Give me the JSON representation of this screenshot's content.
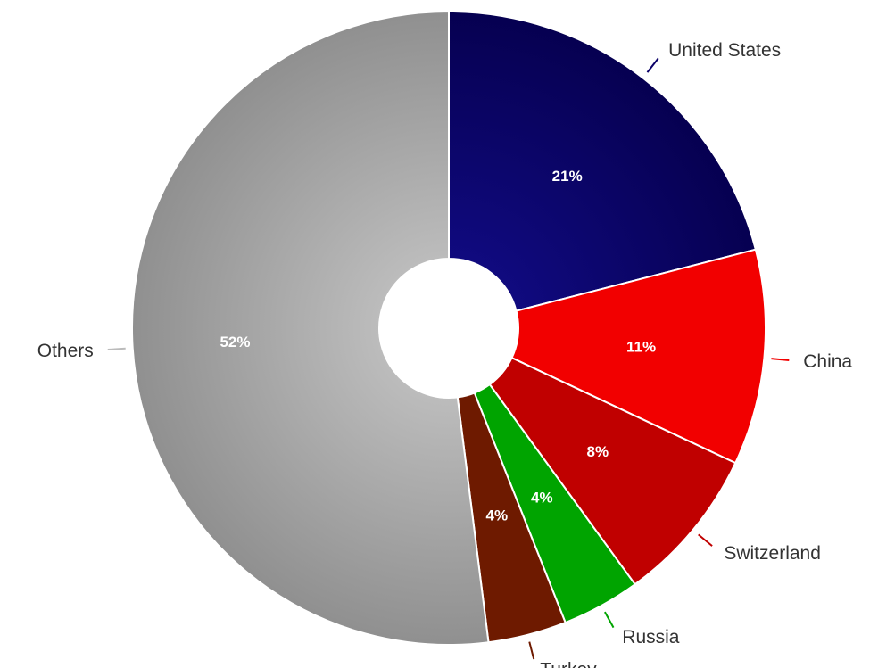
{
  "chart_data": {
    "type": "pie",
    "title": "",
    "slices": [
      {
        "label": "United States",
        "value": 21,
        "display": "21%",
        "color": "#0b0068"
      },
      {
        "label": "China",
        "value": 11,
        "display": "11%",
        "color": "#f20000"
      },
      {
        "label": "Switzerland",
        "value": 8,
        "display": "8%",
        "color": "#c00000"
      },
      {
        "label": "Russia",
        "value": 4,
        "display": "4%",
        "color": "#00a400"
      },
      {
        "label": "Turkey",
        "value": 4,
        "display": "4%",
        "color": "#6e1a00"
      },
      {
        "label": "Others",
        "value": 52,
        "display": "52%",
        "color": "#a8a8a8"
      }
    ],
    "donut": true,
    "legend": "none"
  }
}
